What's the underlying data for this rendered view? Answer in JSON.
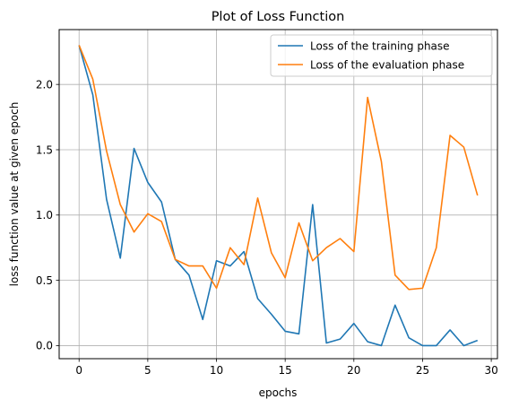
{
  "chart_data": {
    "type": "line",
    "title": "Plot of Loss Function",
    "xlabel": "epochs",
    "ylabel": "loss function value at given epoch",
    "xlim": [
      -1.45,
      30.45
    ],
    "ylim": [
      -0.1,
      2.42
    ],
    "xticks": [
      0,
      5,
      10,
      15,
      20,
      25,
      30
    ],
    "xtick_labels": [
      "0",
      "5",
      "10",
      "15",
      "20",
      "25",
      "30"
    ],
    "yticks": [
      0.0,
      0.5,
      1.0,
      1.5,
      2.0
    ],
    "ytick_labels": [
      "0.0",
      "0.5",
      "1.0",
      "1.5",
      "2.0"
    ],
    "grid": true,
    "legend_position": "top-right",
    "x": [
      0,
      1,
      2,
      3,
      4,
      5,
      6,
      7,
      8,
      9,
      10,
      11,
      12,
      13,
      14,
      15,
      16,
      17,
      18,
      19,
      20,
      21,
      22,
      23,
      24,
      25,
      26,
      27,
      28,
      29
    ],
    "series": [
      {
        "name": "Loss of the training phase",
        "color": "#1f77b4",
        "values": [
          2.3,
          1.92,
          1.12,
          0.67,
          1.51,
          1.25,
          1.1,
          0.66,
          0.54,
          0.2,
          0.65,
          0.61,
          0.72,
          0.36,
          0.24,
          0.11,
          0.09,
          1.08,
          0.02,
          0.05,
          0.17,
          0.03,
          0.0,
          0.31,
          0.06,
          0.0,
          0.0,
          0.12,
          0.0,
          0.04
        ]
      },
      {
        "name": "Loss of the evaluation phase",
        "color": "#ff7f0e",
        "values": [
          2.3,
          2.04,
          1.49,
          1.08,
          0.87,
          1.01,
          0.95,
          0.66,
          0.61,
          0.61,
          0.44,
          0.75,
          0.62,
          1.13,
          0.71,
          0.52,
          0.94,
          0.65,
          0.75,
          0.82,
          0.72,
          1.9,
          1.41,
          0.54,
          0.43,
          0.44,
          0.75,
          1.61,
          1.52,
          1.15
        ]
      }
    ]
  }
}
